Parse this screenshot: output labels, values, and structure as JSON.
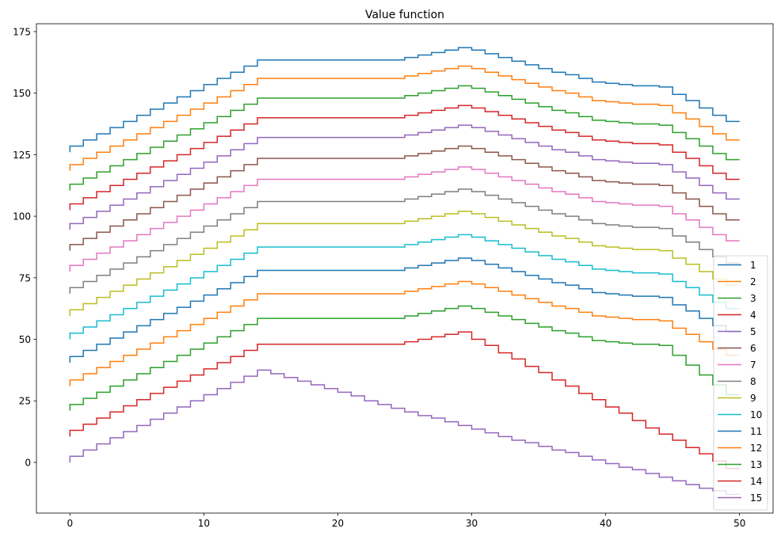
{
  "chart_data": {
    "type": "line",
    "drawstyle": "steps-pre",
    "title": "Value function",
    "xlabel": "",
    "ylabel": "",
    "xlim": [
      -2.5,
      52.5
    ],
    "ylim": [
      -20.6,
      178.2
    ],
    "xticks": [
      0,
      10,
      20,
      30,
      40,
      50
    ],
    "yticks": [
      0,
      25,
      50,
      75,
      100,
      125,
      150,
      175
    ],
    "grid": false,
    "legend_position": "lower-right",
    "x": [
      0,
      1,
      2,
      3,
      4,
      5,
      6,
      7,
      8,
      9,
      10,
      11,
      12,
      13,
      14,
      15,
      16,
      17,
      18,
      19,
      20,
      21,
      22,
      23,
      24,
      25,
      26,
      27,
      28,
      29,
      30,
      31,
      32,
      33,
      34,
      35,
      36,
      37,
      38,
      39,
      40,
      41,
      42,
      43,
      44,
      45,
      46,
      47,
      48,
      49,
      50
    ],
    "series": [
      {
        "name": "1",
        "color": "#1f77b4",
        "values": [
          126,
          128.5,
          131,
          133.5,
          136,
          138.5,
          141,
          143.5,
          146,
          148.5,
          151,
          153.5,
          156,
          158.5,
          161,
          163.5,
          163.5,
          163.5,
          163.5,
          163.5,
          163.5,
          163.5,
          163.5,
          163.5,
          163.5,
          163.5,
          164.5,
          165.5,
          166.5,
          167.5,
          168.5,
          167.5,
          166,
          164.5,
          163,
          161.5,
          160,
          158.5,
          157.5,
          156,
          154.5,
          154,
          153.5,
          153,
          153,
          152.5,
          149.5,
          147,
          144,
          141,
          138.5
        ]
      },
      {
        "name": "2",
        "color": "#ff7f0e",
        "values": [
          118.5,
          121,
          123.5,
          126,
          128.5,
          131,
          133.5,
          136,
          138.5,
          141,
          143.5,
          146,
          148.5,
          151,
          153.5,
          156,
          156,
          156,
          156,
          156,
          156,
          156,
          156,
          156,
          156,
          156,
          157,
          158,
          159,
          160,
          161,
          160,
          158.5,
          157,
          155.5,
          154,
          152.5,
          151,
          150,
          148.5,
          147,
          146.5,
          146,
          145.5,
          145.5,
          145,
          142,
          139.5,
          136.5,
          133.5,
          131
        ]
      },
      {
        "name": "3",
        "color": "#2ca02c",
        "values": [
          110.5,
          113,
          115.5,
          118,
          120.5,
          123,
          125.5,
          128,
          130.5,
          133,
          135.5,
          138,
          140.5,
          143,
          145.5,
          148,
          148,
          148,
          148,
          148,
          148,
          148,
          148,
          148,
          148,
          148,
          149,
          150,
          151,
          152,
          153,
          152,
          150.5,
          149,
          147.5,
          146,
          144.5,
          143,
          142,
          140.5,
          139,
          138.5,
          138,
          137.5,
          137.5,
          137,
          134,
          131.5,
          128.5,
          125.5,
          123
        ]
      },
      {
        "name": "4",
        "color": "#d62728",
        "values": [
          102.5,
          105,
          107.5,
          110,
          112.5,
          115,
          117.5,
          120,
          122.5,
          125,
          127.5,
          130,
          132.5,
          135,
          137.5,
          140,
          140,
          140,
          140,
          140,
          140,
          140,
          140,
          140,
          140,
          140,
          141,
          142,
          143,
          144,
          145,
          144,
          142.5,
          141,
          139.5,
          138,
          136.5,
          135,
          134,
          132.5,
          131,
          130.5,
          130,
          129.5,
          129.5,
          129,
          126,
          123.5,
          120.5,
          117.5,
          115
        ]
      },
      {
        "name": "5",
        "color": "#9467bd",
        "values": [
          94.5,
          97,
          99.5,
          102,
          104.5,
          107,
          109.5,
          112,
          114.5,
          117,
          119.5,
          122,
          124.5,
          127,
          129.5,
          132,
          132,
          132,
          132,
          132,
          132,
          132,
          132,
          132,
          132,
          132,
          133,
          134,
          135,
          136,
          137,
          136,
          134.5,
          133,
          131.5,
          130,
          128.5,
          127,
          126,
          124.5,
          123,
          122.5,
          122,
          121.5,
          121.5,
          121,
          118,
          115.5,
          112.5,
          109.5,
          107
        ]
      },
      {
        "name": "6",
        "color": "#8c564b",
        "values": [
          86,
          88.5,
          91,
          93.5,
          96,
          98.5,
          101,
          103.5,
          106,
          108.5,
          111,
          113.5,
          116,
          118.5,
          121,
          123.5,
          123.5,
          123.5,
          123.5,
          123.5,
          123.5,
          123.5,
          123.5,
          123.5,
          123.5,
          123.5,
          124.5,
          125.5,
          126.5,
          127.5,
          128.5,
          127.5,
          126,
          124.5,
          123,
          121.5,
          120,
          118.5,
          117.5,
          116,
          114.5,
          114,
          113.5,
          113,
          113,
          112.5,
          109.5,
          107,
          104,
          101,
          98.5
        ]
      },
      {
        "name": "7",
        "color": "#e377c2",
        "values": [
          77.5,
          80,
          82.5,
          85,
          87.5,
          90,
          92.5,
          95,
          97.5,
          100,
          102.5,
          105,
          107.5,
          110,
          112.5,
          115,
          115,
          115,
          115,
          115,
          115,
          115,
          115,
          115,
          115,
          115,
          116,
          117,
          118,
          119,
          120,
          119,
          117.5,
          116,
          114.5,
          113,
          111.5,
          110,
          109,
          107.5,
          106,
          105.5,
          105,
          104.5,
          104.5,
          104,
          101,
          98.5,
          95.5,
          92.5,
          90
        ]
      },
      {
        "name": "8",
        "color": "#7f7f7f",
        "values": [
          68.5,
          71,
          73.5,
          76,
          78.5,
          81,
          83.5,
          86,
          88.5,
          91,
          93.5,
          96,
          98.5,
          101,
          103.5,
          106,
          106,
          106,
          106,
          106,
          106,
          106,
          106,
          106,
          106,
          106,
          107,
          108,
          109,
          110,
          111,
          110,
          108.5,
          107,
          105.5,
          104,
          102.5,
          101,
          100,
          98.5,
          97,
          96.5,
          96,
          95.5,
          95.5,
          95,
          92,
          89.5,
          86.5,
          83.5,
          81
        ]
      },
      {
        "name": "9",
        "color": "#bcbd22",
        "values": [
          59.5,
          62,
          64.5,
          67,
          69.5,
          72,
          74.5,
          77,
          79.5,
          82,
          84.5,
          87,
          89.5,
          92,
          94.5,
          97,
          97,
          97,
          97,
          97,
          97,
          97,
          97,
          97,
          97,
          97,
          98,
          99,
          100,
          101,
          102,
          101,
          99.5,
          98,
          96.5,
          95,
          93.5,
          92,
          91,
          89.5,
          88,
          87.5,
          87,
          86.5,
          86.5,
          86,
          83,
          80.5,
          77.5,
          74.5,
          72
        ]
      },
      {
        "name": "10",
        "color": "#17becf",
        "values": [
          50,
          52.5,
          55,
          57.5,
          60,
          62.5,
          65,
          67.5,
          70,
          72.5,
          75,
          77.5,
          80,
          82.5,
          85,
          87.5,
          87.5,
          87.5,
          87.5,
          87.5,
          87.5,
          87.5,
          87.5,
          87.5,
          87.5,
          87.5,
          88.5,
          89.5,
          90.5,
          91.5,
          92.5,
          91.5,
          90,
          88.5,
          87,
          85.5,
          84,
          82.5,
          81.5,
          80,
          78.5,
          78,
          77.5,
          77,
          77,
          76.5,
          73.5,
          71,
          68,
          65,
          62.5
        ]
      },
      {
        "name": "11",
        "color": "#1f77b4",
        "values": [
          40.5,
          43,
          45.5,
          48,
          50.5,
          53,
          55.5,
          58,
          60.5,
          63,
          65.5,
          68,
          70.5,
          73,
          75.5,
          78,
          78,
          78,
          78,
          78,
          78,
          78,
          78,
          78,
          78,
          78,
          79,
          80,
          81,
          82,
          83,
          82,
          80.5,
          79,
          77.5,
          76,
          74.5,
          73,
          72,
          70.5,
          69,
          68.5,
          68,
          67.5,
          67.5,
          67,
          64,
          61.5,
          58.5,
          55.5,
          53
        ]
      },
      {
        "name": "12",
        "color": "#ff7f0e",
        "values": [
          31,
          33.5,
          36,
          38.5,
          41,
          43.5,
          46,
          48.5,
          51,
          53.5,
          56,
          58.5,
          61,
          63.5,
          66,
          68.5,
          68.5,
          68.5,
          68.5,
          68.5,
          68.5,
          68.5,
          68.5,
          68.5,
          68.5,
          68.5,
          69.5,
          70.5,
          71.5,
          72.5,
          73.5,
          72.5,
          71,
          69.5,
          68,
          66.5,
          65,
          63.5,
          62.5,
          61,
          59.5,
          59,
          58.5,
          58,
          58,
          57.5,
          54.5,
          52,
          49,
          46,
          43.5
        ]
      },
      {
        "name": "13",
        "color": "#2ca02c",
        "values": [
          21,
          23.5,
          26,
          28.5,
          31,
          33.5,
          36,
          38.5,
          41,
          43.5,
          46,
          48.5,
          51,
          53.5,
          56,
          58.5,
          58.5,
          58.5,
          58.5,
          58.5,
          58.5,
          58.5,
          58.5,
          58.5,
          58.5,
          58.5,
          59.5,
          60.5,
          61.5,
          62.5,
          63.5,
          62.5,
          61,
          59.5,
          58,
          56.5,
          55,
          53.5,
          52.5,
          51,
          49.5,
          49,
          48.5,
          48,
          48,
          47.5,
          43.5,
          39.5,
          35.5,
          31.5,
          27.5
        ]
      },
      {
        "name": "14",
        "color": "#d62728",
        "values": [
          10.5,
          13,
          15.5,
          18,
          20.5,
          23,
          25.5,
          28,
          30.5,
          33,
          35.5,
          38,
          40.5,
          43,
          45.5,
          48,
          48,
          48,
          48,
          48,
          48,
          48,
          48,
          48,
          48,
          48,
          49,
          50,
          51,
          52,
          53,
          50,
          47.5,
          44.5,
          42,
          39,
          36.5,
          33.5,
          31,
          28,
          25.5,
          22.5,
          20,
          17,
          14,
          11.5,
          9,
          6,
          3.5,
          0.5,
          -2.5
        ]
      },
      {
        "name": "15",
        "color": "#9467bd",
        "values": [
          0,
          2.5,
          5,
          7.5,
          10,
          12.5,
          15,
          17.5,
          20,
          22.5,
          25,
          27.5,
          30,
          32.5,
          35,
          37.5,
          36,
          34.5,
          33,
          31.5,
          30,
          28.5,
          27,
          25,
          23.5,
          22,
          20.5,
          19,
          18,
          16.5,
          15,
          13.5,
          12,
          10.5,
          9,
          8,
          6.5,
          5,
          4,
          2.5,
          1,
          -0.5,
          -2,
          -3,
          -4.5,
          -6,
          -7.5,
          -9,
          -10.5,
          -11.5,
          -13
        ]
      }
    ]
  }
}
